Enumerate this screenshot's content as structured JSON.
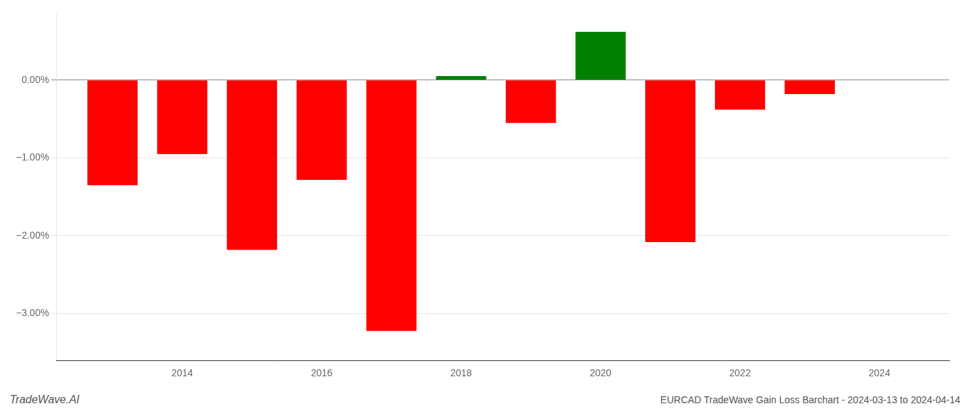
{
  "chart_data": {
    "type": "bar",
    "x": [
      2013,
      2014,
      2015,
      2016,
      2017,
      2018,
      2019,
      2020,
      2021,
      2022,
      2023
    ],
    "values": [
      -1.35,
      -0.95,
      -2.18,
      -1.28,
      -3.22,
      0.05,
      -0.55,
      0.62,
      -2.08,
      -0.38,
      -0.18
    ],
    "colors": [
      "#ff0000",
      "#ff0000",
      "#ff0000",
      "#ff0000",
      "#ff0000",
      "#008000",
      "#ff0000",
      "#008000",
      "#ff0000",
      "#ff0000",
      "#ff0000"
    ],
    "xlim": [
      2012.2,
      2025.0
    ],
    "xticks": [
      2014,
      2016,
      2018,
      2020,
      2022,
      2024
    ],
    "ylim": [
      -3.6,
      0.85
    ],
    "yticks": [
      {
        "value": 0.0,
        "label": "0.00%"
      },
      {
        "value": -1.0,
        "label": "−1.00%"
      },
      {
        "value": -2.0,
        "label": "−2.00%"
      },
      {
        "value": -3.0,
        "label": "−3.00%"
      }
    ],
    "grid": true,
    "annotations": [
      "TradeWave.AI",
      "EURCAD TradeWave Gain Loss Barchart - 2024-03-13 to 2024-04-14"
    ]
  }
}
